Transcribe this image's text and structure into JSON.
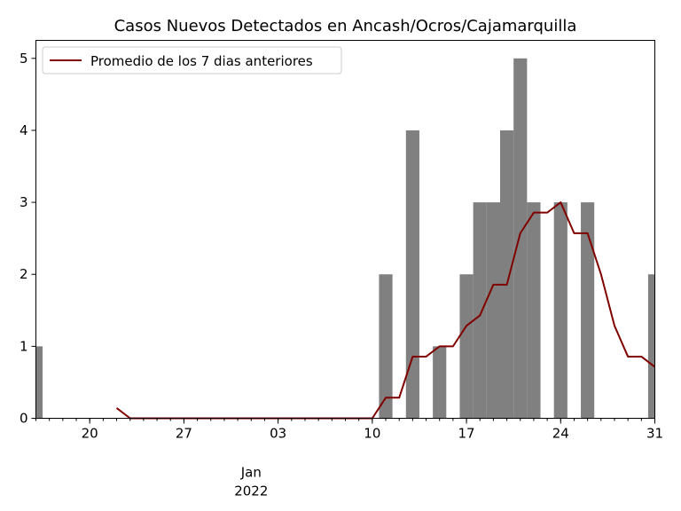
{
  "chart_data": {
    "type": "bar",
    "title": "Casos Nuevos Detectados en Ancash/Ocros/Cajamarquilla",
    "xlabel": "",
    "ylabel": "",
    "x_start": "2021-12-16",
    "x_end": "2022-01-31",
    "ylim": [
      0,
      5.25
    ],
    "y_ticks": [
      "0",
      "1",
      "2",
      "3",
      "4",
      "5"
    ],
    "x_ticks": [
      {
        "date": "2021-12-20",
        "label": "20"
      },
      {
        "date": "2021-12-27",
        "label": "27"
      },
      {
        "date": "2022-01-03",
        "label": "03"
      },
      {
        "date": "2022-01-10",
        "label": "10"
      },
      {
        "date": "2022-01-17",
        "label": "17"
      },
      {
        "date": "2022-01-24",
        "label": "24"
      },
      {
        "date": "2022-01-31",
        "label": "31"
      }
    ],
    "x_secondary_label": {
      "month": "Jan",
      "year": "2022",
      "date": "2022-01-01"
    },
    "bar_color": "#808080",
    "bars": {
      "name": "Casos Nuevos",
      "dates": [
        "2021-12-16",
        "2022-01-11",
        "2022-01-13",
        "2022-01-15",
        "2022-01-17",
        "2022-01-18",
        "2022-01-19",
        "2022-01-20",
        "2022-01-21",
        "2022-01-22",
        "2022-01-24",
        "2022-01-26",
        "2022-01-31"
      ],
      "values": [
        1,
        2,
        4,
        1,
        2,
        3,
        3,
        4,
        5,
        3,
        3,
        3,
        2
      ]
    },
    "line_color": "#800000",
    "series": [
      {
        "name": "Promedio de los 7 dias anteriores",
        "dates": [
          "2021-12-22",
          "2021-12-23",
          "2021-12-24",
          "2021-12-25",
          "2021-12-26",
          "2021-12-27",
          "2021-12-28",
          "2021-12-29",
          "2021-12-30",
          "2021-12-31",
          "2022-01-01",
          "2022-01-02",
          "2022-01-03",
          "2022-01-04",
          "2022-01-05",
          "2022-01-06",
          "2022-01-07",
          "2022-01-08",
          "2022-01-09",
          "2022-01-10",
          "2022-01-11",
          "2022-01-12",
          "2022-01-13",
          "2022-01-14",
          "2022-01-15",
          "2022-01-16",
          "2022-01-17",
          "2022-01-18",
          "2022-01-19",
          "2022-01-20",
          "2022-01-21",
          "2022-01-22",
          "2022-01-23",
          "2022-01-24",
          "2022-01-25",
          "2022-01-26",
          "2022-01-27",
          "2022-01-28",
          "2022-01-29",
          "2022-01-30",
          "2022-01-31"
        ],
        "values": [
          0.143,
          0,
          0,
          0,
          0,
          0,
          0,
          0,
          0,
          0,
          0,
          0,
          0,
          0,
          0,
          0,
          0,
          0,
          0,
          0,
          0.286,
          0.286,
          0.857,
          0.857,
          1.0,
          1.0,
          1.286,
          1.429,
          1.857,
          1.857,
          2.571,
          2.857,
          2.857,
          3.0,
          2.571,
          2.571,
          2.0,
          1.286,
          0.857,
          0.857,
          0.714
        ]
      }
    ],
    "legend": {
      "position": "upper-left",
      "entries": [
        "Promedio de los 7 dias anteriores"
      ]
    },
    "grid": false
  }
}
